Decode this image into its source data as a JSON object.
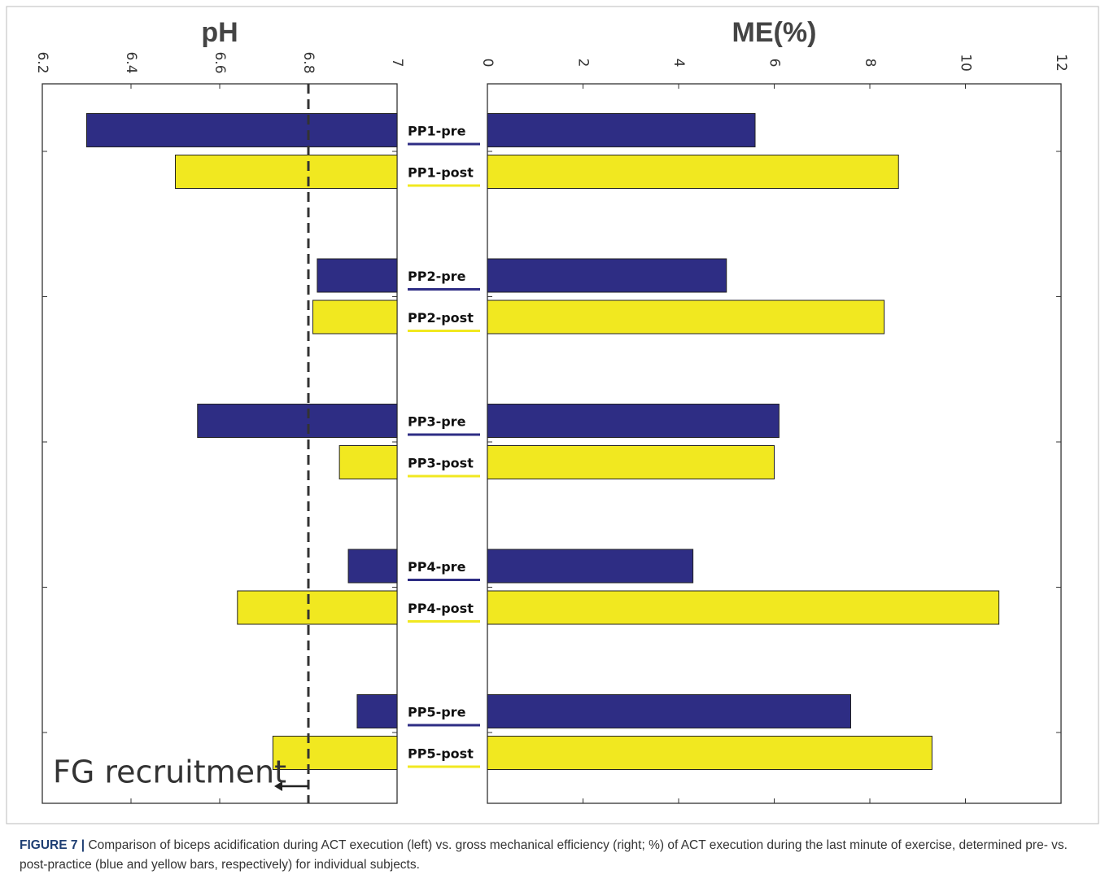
{
  "chart_data": {
    "type": "bar",
    "categories": [
      "PP1-pre",
      "PP1-post",
      "PP2-pre",
      "PP2-post",
      "PP3-pre",
      "PP3-post",
      "PP4-pre",
      "PP4-post",
      "PP5-pre",
      "PP5-post"
    ],
    "colors": [
      "#2e2d84",
      "#f1e820",
      "#2e2d84",
      "#f1e820",
      "#2e2d84",
      "#f1e820",
      "#2e2d84",
      "#f1e820",
      "#2e2d84",
      "#f1e820"
    ],
    "panels": [
      {
        "title": "pH",
        "values": [
          6.3,
          6.5,
          6.82,
          6.81,
          6.55,
          6.87,
          6.89,
          6.64,
          6.91,
          6.72
        ],
        "xlim": [
          6.2,
          7
        ],
        "xticks": [
          6.2,
          6.4,
          6.6,
          6.8,
          7
        ],
        "reference_line": 6.8,
        "annotation": "FG recruitment"
      },
      {
        "title": "ME(%)",
        "values": [
          5.6,
          8.6,
          5.0,
          8.3,
          6.1,
          6.0,
          4.3,
          10.7,
          7.6,
          9.3
        ],
        "xlim": [
          0,
          12
        ],
        "xticks": [
          0,
          2,
          4,
          6,
          8,
          10,
          12
        ]
      }
    ],
    "caption_label": "FIGURE 7 |",
    "caption": "Comparison of biceps acidification during ACT execution (left) vs. gross mechanical efficiency (right; %) of ACT execution during the last minute of exercise, determined pre- vs. post-practice (blue and yellow bars, respectively) for individual subjects."
  }
}
